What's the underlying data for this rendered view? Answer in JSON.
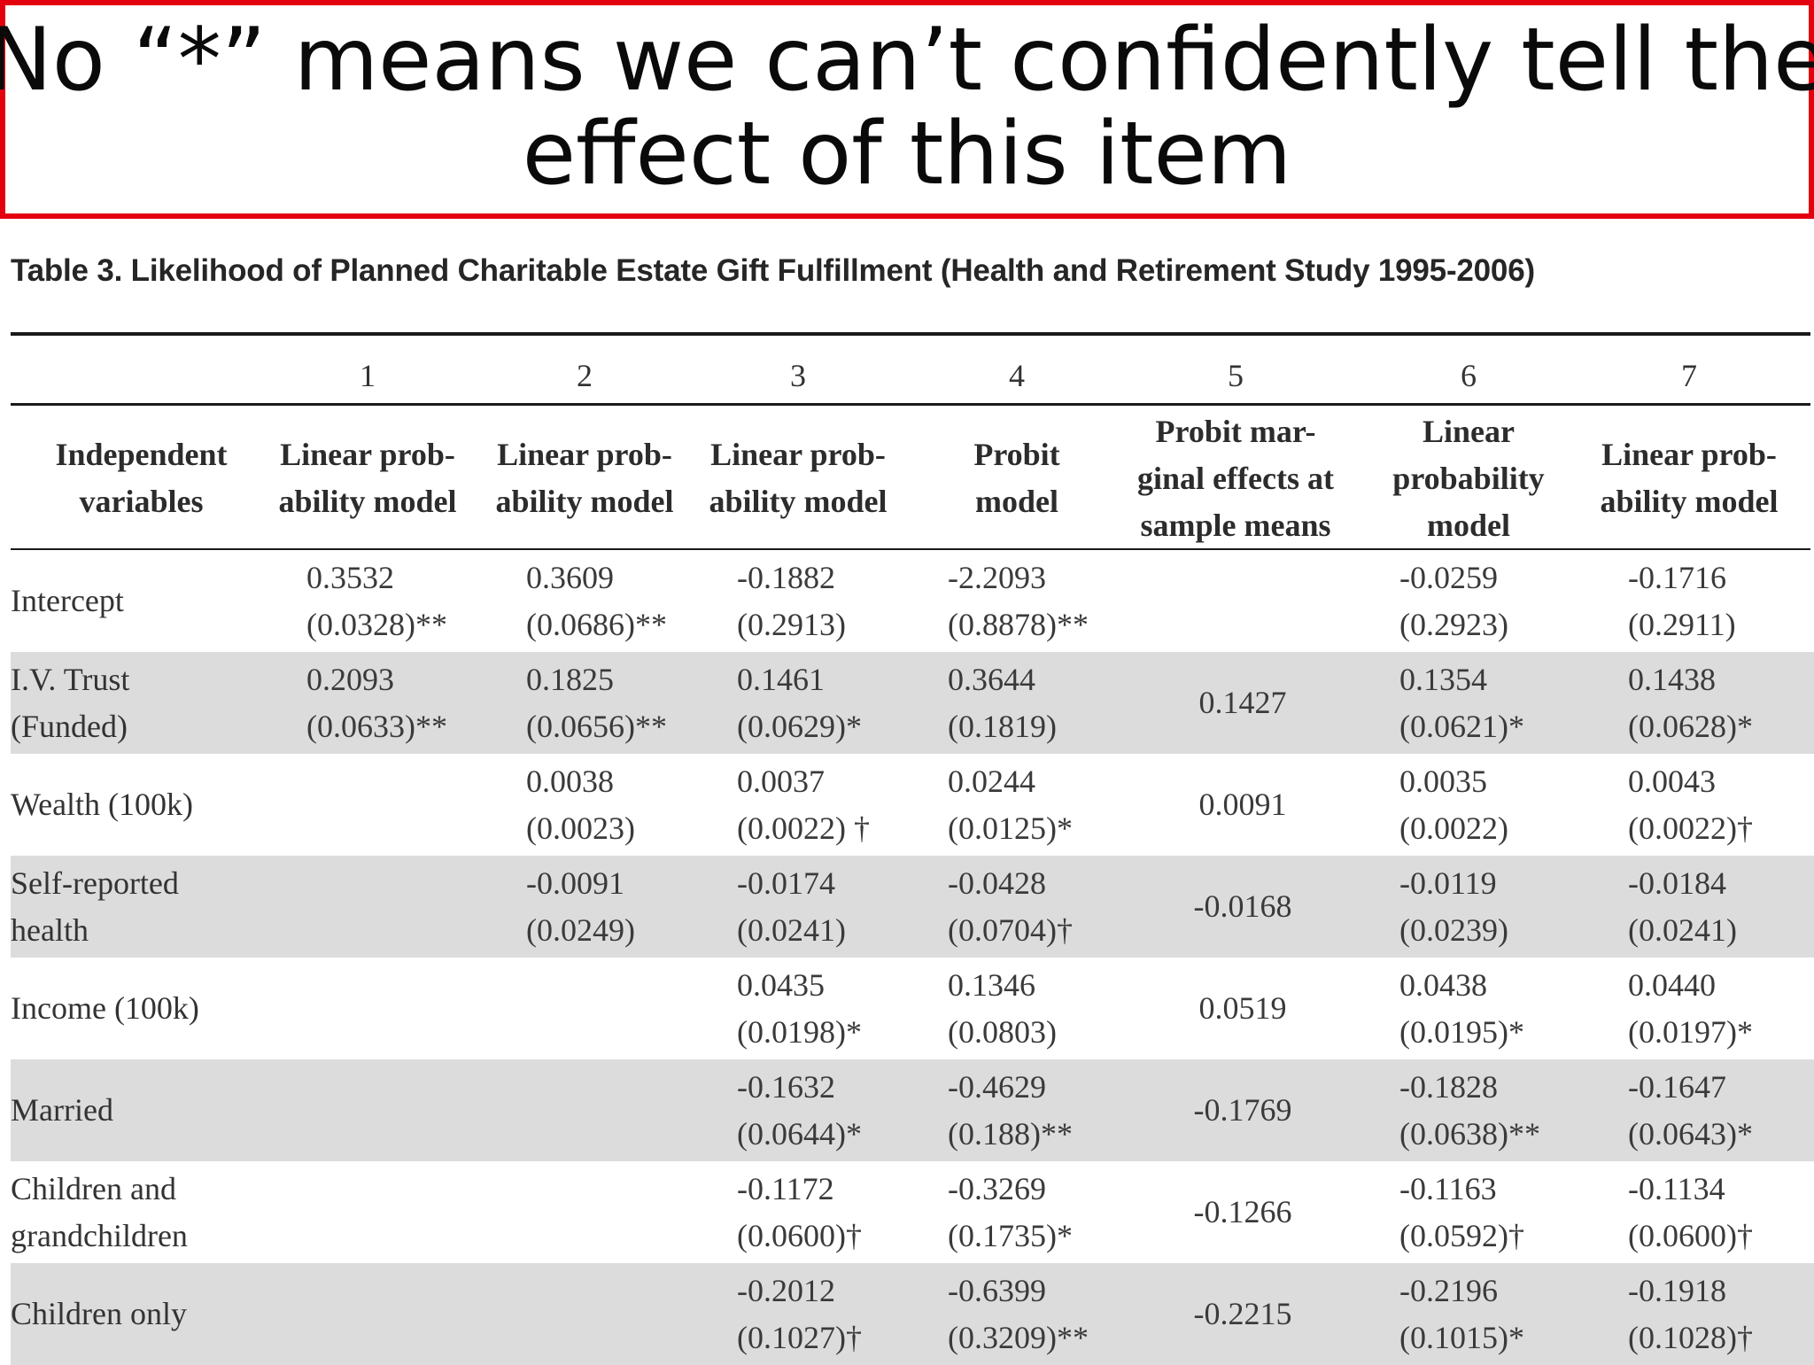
{
  "callout": {
    "line1": "No “*” means we can’t confidently tell the",
    "line2": "effect of this item"
  },
  "table": {
    "title": "Table 3. Likelihood of Planned Charitable Estate Gift Fulfillment (Health and Retirement Study 1995-2006)",
    "column_numbers": [
      "1",
      "2",
      "3",
      "4",
      "5",
      "6",
      "7"
    ],
    "header_label": [
      "Independent",
      "variables"
    ],
    "column_headers": [
      [
        "Linear prob-",
        "ability model"
      ],
      [
        "Linear prob-",
        "ability model"
      ],
      [
        "Linear prob-",
        "ability model"
      ],
      [
        "Probit",
        "model"
      ],
      [
        "Probit mar-",
        "ginal effects at",
        "sample means"
      ],
      [
        "Linear",
        "probability",
        "model"
      ],
      [
        "Linear prob-",
        "ability model"
      ]
    ],
    "rows": [
      {
        "label": [
          "Intercept"
        ],
        "shaded": false,
        "cells": [
          [
            "0.3532",
            "(0.0328)**"
          ],
          [
            "0.3609",
            "(0.0686)**"
          ],
          [
            "-0.1882",
            "(0.2913)"
          ],
          [
            "-2.2093",
            "(0.8878)**"
          ],
          [],
          [
            "-0.0259",
            "(0.2923)"
          ],
          [
            "-0.1716",
            "(0.2911)"
          ]
        ]
      },
      {
        "label": [
          "I.V. Trust",
          "(Funded)"
        ],
        "shaded": true,
        "cells": [
          [
            "0.2093",
            "(0.0633)**"
          ],
          [
            "0.1825",
            "(0.0656)**"
          ],
          [
            "0.1461",
            "(0.0629)*"
          ],
          [
            "0.3644",
            "(0.1819)"
          ],
          [
            "0.1427"
          ],
          [
            "0.1354",
            "(0.0621)*"
          ],
          [
            "0.1438",
            "(0.0628)*"
          ]
        ]
      },
      {
        "label": [
          "Wealth (100k)"
        ],
        "shaded": false,
        "cells": [
          [],
          [
            "0.0038",
            "(0.0023)"
          ],
          [
            "0.0037",
            "(0.0022) †"
          ],
          [
            "0.0244",
            "(0.0125)*"
          ],
          [
            "0.0091"
          ],
          [
            "0.0035",
            "(0.0022)"
          ],
          [
            "0.0043",
            "(0.0022)†"
          ]
        ]
      },
      {
        "label": [
          "Self-reported",
          "health"
        ],
        "shaded": true,
        "cells": [
          [],
          [
            "-0.0091",
            "(0.0249)"
          ],
          [
            "-0.0174",
            "(0.0241)"
          ],
          [
            "-0.0428",
            "(0.0704)†"
          ],
          [
            "-0.0168"
          ],
          [
            "-0.0119",
            "(0.0239)"
          ],
          [
            "-0.0184",
            "(0.0241)"
          ]
        ]
      },
      {
        "label": [
          "Income (100k)"
        ],
        "shaded": false,
        "cells": [
          [],
          [],
          [
            "0.0435",
            "(0.0198)*"
          ],
          [
            "0.1346",
            "(0.0803)"
          ],
          [
            "0.0519"
          ],
          [
            "0.0438",
            "(0.0195)*"
          ],
          [
            "0.0440",
            "(0.0197)*"
          ]
        ]
      },
      {
        "label": [
          "Married"
        ],
        "shaded": true,
        "cells": [
          [],
          [],
          [
            "-0.1632",
            "(0.0644)*"
          ],
          [
            "-0.4629",
            "(0.188)**"
          ],
          [
            "-0.1769"
          ],
          [
            "-0.1828",
            "(0.0638)**"
          ],
          [
            "-0.1647",
            "(0.0643)*"
          ]
        ]
      },
      {
        "label": [
          "Children and",
          "grandchildren"
        ],
        "shaded": false,
        "cells": [
          [],
          [],
          [
            "-0.1172",
            "(0.0600)†"
          ],
          [
            "-0.3269",
            "(0.1735)*"
          ],
          [
            "-0.1266"
          ],
          [
            "-0.1163",
            "(0.0592)†"
          ],
          [
            "-0.1134",
            "(0.0600)†"
          ]
        ]
      },
      {
        "label": [
          "Children only"
        ],
        "shaded": true,
        "cells": [
          [],
          [],
          [
            "-0.2012",
            "(0.1027)†"
          ],
          [
            "-0.6399",
            "(0.3209)**"
          ],
          [
            "-0.2215"
          ],
          [
            "-0.2196",
            "(0.1015)*"
          ],
          [
            "-0.1918",
            "(0.1028)†"
          ]
        ]
      }
    ]
  }
}
